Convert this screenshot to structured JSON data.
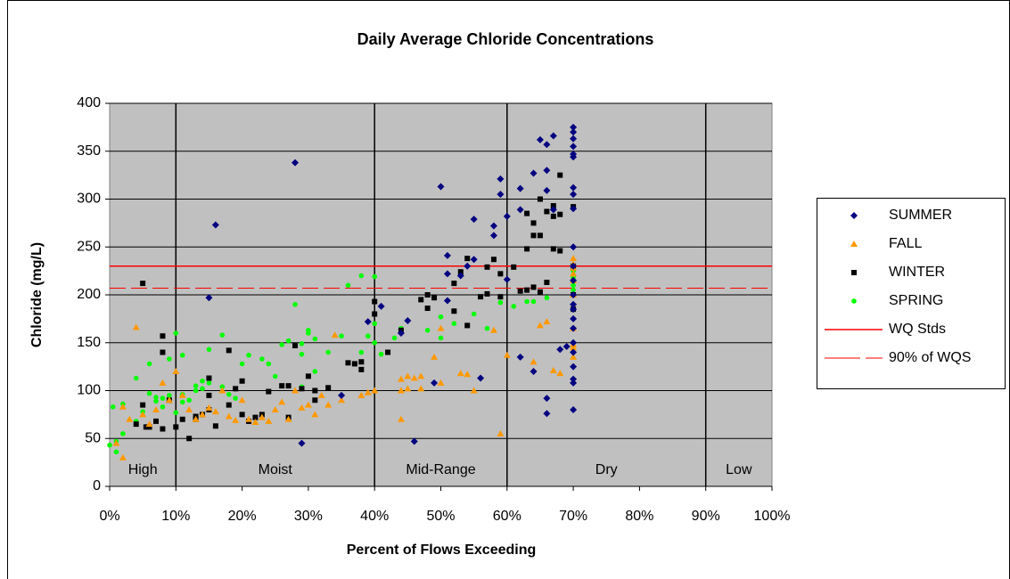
{
  "chart_data": {
    "type": "scatter",
    "title": "Daily Average Chloride Concentrations",
    "x_label": "Percent of Flows Exceeding",
    "y_label": "Chloride (mg/L)",
    "xlim": [
      0,
      100
    ],
    "ylim": [
      0,
      400
    ],
    "xticks": [
      {
        "value": 0,
        "label": "0%"
      },
      {
        "value": 10,
        "label": "10%"
      },
      {
        "value": 20,
        "label": "20%"
      },
      {
        "value": 30,
        "label": "30%"
      },
      {
        "value": 40,
        "label": "40%"
      },
      {
        "value": 50,
        "label": "50%"
      },
      {
        "value": 60,
        "label": "60%"
      },
      {
        "value": 70,
        "label": "70%"
      },
      {
        "value": 80,
        "label": "80%"
      },
      {
        "value": 90,
        "label": "90%"
      },
      {
        "value": 100,
        "label": "100%"
      }
    ],
    "yticks": [
      0,
      50,
      100,
      150,
      200,
      250,
      300,
      350,
      400
    ],
    "grid": true,
    "legend": "right",
    "zone_bounds": [
      0,
      10,
      40,
      60,
      90,
      100
    ],
    "zone_labels": [
      "High",
      "Moist",
      "Mid-Range",
      "Dry",
      "Low"
    ],
    "series": [
      {
        "name": "SUMMER",
        "color": "#000080",
        "marker": "diamond",
        "x": [
          15,
          16,
          28,
          29,
          35,
          39,
          41,
          44,
          45,
          46,
          49,
          50,
          51,
          51,
          51,
          53,
          54,
          55,
          55,
          56,
          58,
          58,
          59,
          59,
          60,
          60,
          62,
          62,
          62,
          64,
          64,
          65,
          66,
          66,
          66,
          66,
          66,
          67,
          67,
          68,
          69,
          70,
          70,
          70,
          70,
          70,
          70,
          70,
          70,
          70,
          70,
          70,
          70,
          70,
          70,
          70,
          70,
          70,
          70,
          70,
          70,
          70,
          70,
          70
        ],
        "values": [
          197,
          273,
          338,
          45,
          95,
          172,
          188,
          160,
          173,
          47,
          108,
          313,
          241,
          222,
          194,
          220,
          230,
          279,
          237,
          113,
          272,
          262,
          321,
          305,
          282,
          216,
          311,
          289,
          135,
          327,
          120,
          362,
          357,
          330,
          309,
          92,
          76,
          366,
          289,
          143,
          146,
          375,
          370,
          363,
          355,
          347,
          344,
          312,
          305,
          290,
          250,
          230,
          215,
          200,
          190,
          185,
          175,
          165,
          150,
          140,
          125,
          112,
          108,
          80
        ]
      },
      {
        "name": "FALL",
        "color": "#ff9900",
        "marker": "triangle",
        "x": [
          1,
          2,
          2,
          3,
          4,
          5,
          6,
          7,
          8,
          9,
          10,
          11,
          12,
          13,
          14,
          15,
          16,
          17,
          18,
          19,
          20,
          21,
          22,
          23,
          24,
          25,
          26,
          27,
          28,
          29,
          30,
          31,
          32,
          33,
          34,
          35,
          38,
          39,
          40,
          44,
          44,
          44,
          45,
          45,
          46,
          47,
          47,
          49,
          50,
          50,
          53,
          54,
          55,
          58,
          59,
          60,
          64,
          65,
          66,
          67,
          68,
          70,
          70,
          70,
          70,
          70,
          70,
          70,
          70,
          70,
          70
        ],
        "values": [
          45,
          30,
          83,
          70,
          166,
          75,
          65,
          80,
          108,
          90,
          120,
          95,
          80,
          70,
          75,
          82,
          78,
          100,
          73,
          69,
          90,
          70,
          67,
          72,
          68,
          80,
          88,
          70,
          100,
          82,
          85,
          75,
          95,
          85,
          158,
          90,
          95,
          98,
          100,
          70,
          112,
          100,
          115,
          102,
          113,
          115,
          102,
          135,
          165,
          108,
          118,
          117,
          100,
          163,
          55,
          137,
          130,
          168,
          172,
          121,
          118,
          238,
          232,
          228,
          222,
          215,
          200,
          165,
          148,
          145,
          135
        ]
      },
      {
        "name": "WINTER",
        "color": "#000000",
        "marker": "square",
        "x": [
          4,
          5,
          5,
          5.5,
          6,
          7,
          8,
          8,
          8,
          9,
          10,
          11,
          12,
          13,
          13,
          14,
          15,
          15,
          15,
          16,
          18,
          18,
          19,
          20,
          20,
          21,
          22,
          23,
          24,
          26,
          27,
          27,
          28,
          29,
          30,
          31,
          31,
          33,
          36,
          37,
          38,
          38,
          40,
          40,
          42,
          44,
          47,
          48,
          48,
          49,
          52,
          52,
          53,
          54,
          54,
          56,
          57,
          57,
          58,
          59,
          59,
          61,
          62,
          63,
          63,
          63,
          64,
          64,
          64,
          65,
          65,
          65,
          66,
          66,
          67,
          67,
          67,
          68,
          68,
          68,
          70,
          70,
          70,
          70
        ],
        "values": [
          65,
          212,
          85,
          62,
          62,
          68,
          157,
          140,
          60,
          90,
          62,
          70,
          50,
          73,
          70,
          75,
          113,
          80,
          95,
          63,
          142,
          85,
          102,
          110,
          75,
          68,
          72,
          75,
          99,
          105,
          105,
          72,
          147,
          102,
          115,
          100,
          90,
          103,
          129,
          128,
          130,
          122,
          193,
          180,
          140,
          163,
          195,
          200,
          186,
          197,
          212,
          183,
          224,
          238,
          168,
          198,
          229,
          201,
          237,
          222,
          198,
          229,
          204,
          285,
          248,
          205,
          275,
          262,
          208,
          300,
          262,
          203,
          287,
          213,
          293,
          282,
          248,
          325,
          284,
          246,
          292,
          230,
          200,
          185
        ]
      },
      {
        "name": "SPRING",
        "color": "#00ff00",
        "marker": "circle",
        "x": [
          0,
          0.5,
          1,
          1,
          2,
          2,
          4,
          4,
          5,
          6,
          6,
          7,
          7,
          8,
          8,
          9,
          9,
          10,
          10,
          11,
          11,
          11,
          12,
          13,
          13,
          14,
          14,
          15,
          15,
          17,
          17,
          18,
          19,
          20,
          20,
          21,
          23,
          24,
          25,
          26,
          27,
          28,
          29,
          29,
          29,
          30,
          30,
          31,
          31,
          33,
          35,
          36,
          38,
          38,
          39,
          40,
          40,
          40,
          41,
          43,
          44,
          48,
          50,
          50,
          52,
          55,
          57,
          59,
          61,
          63,
          64,
          66,
          70,
          70,
          70,
          70,
          70,
          70,
          70
        ],
        "values": [
          43,
          83,
          47,
          36,
          86,
          55,
          113,
          68,
          78,
          128,
          97,
          93,
          89,
          83,
          92,
          133,
          95,
          160,
          77,
          137,
          96,
          88,
          90,
          100,
          105,
          110,
          102,
          143,
          108,
          158,
          104,
          96,
          92,
          128,
          110,
          137,
          133,
          128,
          115,
          148,
          152,
          190,
          149,
          138,
          104,
          163,
          160,
          154,
          120,
          140,
          157,
          210,
          220,
          140,
          157,
          219,
          170,
          150,
          138,
          155,
          165,
          163,
          177,
          155,
          170,
          180,
          165,
          192,
          188,
          193,
          193,
          197,
          225,
          220,
          218,
          215,
          210,
          205,
          200
        ]
      }
    ],
    "reference_lines": [
      {
        "name": "WQ Stds",
        "value": 230,
        "color": "#ff0000",
        "dashed": false
      },
      {
        "name": "90% of WQS",
        "value": 207,
        "color": "#ff0000",
        "dashed": true
      }
    ]
  }
}
